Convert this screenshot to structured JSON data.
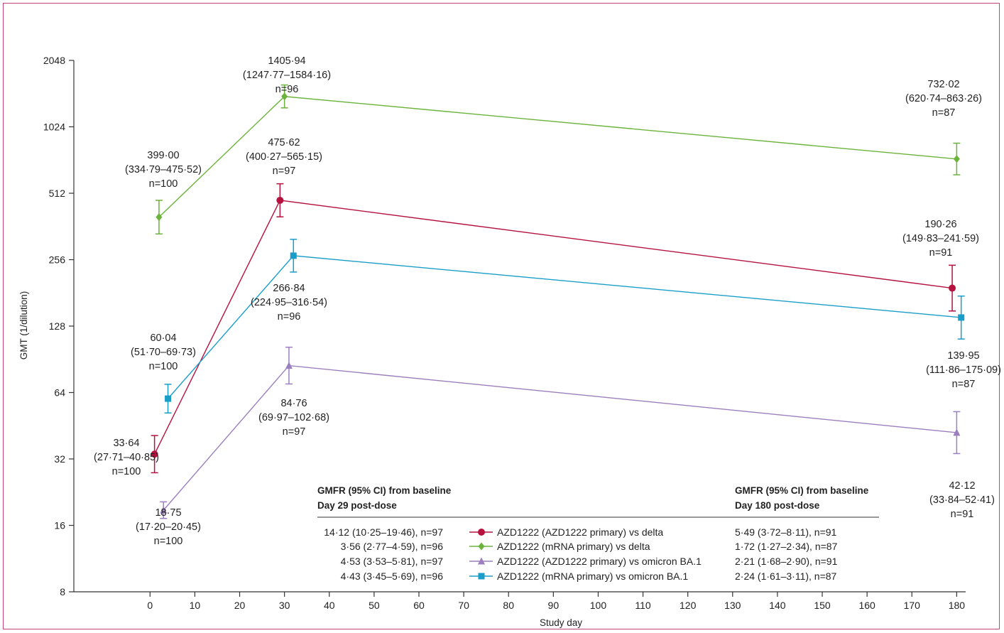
{
  "chart_data": {
    "type": "line",
    "xlabel": "Study day",
    "ylabel": "GMT (1/dilution)",
    "y_scale": "log2",
    "xlim": [
      -17,
      182
    ],
    "ylim": [
      8,
      2048
    ],
    "x_ticks": [
      "0",
      "10",
      "20",
      "30",
      "40",
      "50",
      "60",
      "70",
      "80",
      "90",
      "100",
      "110",
      "120",
      "130",
      "140",
      "150",
      "160",
      "170",
      "180"
    ],
    "y_ticks": [
      "8",
      "16",
      "32",
      "64",
      "128",
      "256",
      "512",
      "1024",
      "2048"
    ],
    "grid": false,
    "series": [
      {
        "name": "AZD1222 (AZD1222 primary) vs delta",
        "color": "#b5123f",
        "marker": "circle",
        "x": [
          1,
          29,
          179
        ],
        "y": [
          33.64,
          475.62,
          190.26
        ],
        "ci_low": [
          27.71,
          400.27,
          149.83
        ],
        "ci_high": [
          40.85,
          565.15,
          241.59
        ],
        "value_labels": [
          "33·64",
          "475·62",
          "190·26"
        ],
        "ci_labels": [
          "(27·71–40·85)",
          "(400·27–565·15)",
          "(149·83–241·59)"
        ],
        "n_labels": [
          "n=100",
          "n=97",
          "n=91"
        ],
        "gmfr_day29": "14·12 (10·25–19·46), n=97",
        "gmfr_day180": "5·49 (3·72–8·11), n=91"
      },
      {
        "name": "AZD1222 (mRNA primary) vs delta",
        "color": "#6bb33a",
        "marker": "diamond",
        "x": [
          2,
          30,
          180
        ],
        "y": [
          399.0,
          1405.94,
          732.02
        ],
        "ci_low": [
          334.79,
          1247.77,
          620.74
        ],
        "ci_high": [
          475.52,
          1584.16,
          863.26
        ],
        "value_labels": [
          "399·00",
          "1405·94",
          "732·02"
        ],
        "ci_labels": [
          "(334·79–475·52)",
          "(1247·77–1584·16)",
          "(620·74–863·26)"
        ],
        "n_labels": [
          "n=100",
          "n=96",
          "n=87"
        ],
        "gmfr_day29": "3·56 (2·77–4·59), n=96",
        "gmfr_day180": "1·72 (1·27–2·34), n=87"
      },
      {
        "name": "AZD1222 (AZD1222 primary) vs omicron BA.1",
        "color": "#9b7fbe",
        "marker": "triangle",
        "x": [
          3,
          31,
          180
        ],
        "y": [
          18.75,
          84.76,
          42.12
        ],
        "ci_low": [
          17.2,
          69.97,
          33.84
        ],
        "ci_high": [
          20.45,
          102.68,
          52.41
        ],
        "value_labels": [
          "18·75",
          "84·76",
          "42·12"
        ],
        "ci_labels": [
          "(17·20–20·45)",
          "(69·97–102·68)",
          "(33·84–52·41)"
        ],
        "n_labels": [
          "n=100",
          "n=97",
          "n=91"
        ],
        "gmfr_day29": "4·53 (3·53–5·81), n=97",
        "gmfr_day180": "2·21 (1·68–2·90), n=91"
      },
      {
        "name": "AZD1222 (mRNA primary) vs omicron BA.1",
        "color": "#1a9ec9",
        "marker": "square",
        "x": [
          4,
          32,
          181
        ],
        "y": [
          60.04,
          266.84,
          139.95
        ],
        "ci_low": [
          51.7,
          224.95,
          111.86
        ],
        "ci_high": [
          69.73,
          316.54,
          175.09
        ],
        "value_labels": [
          "60·04",
          "266·84",
          "139·95"
        ],
        "ci_labels": [
          "(51·70–69·73)",
          "(224·95–316·54)",
          "(111·86–175·09)"
        ],
        "n_labels": [
          "n=100",
          "n=96",
          "n=87"
        ],
        "gmfr_day29": "4·43 (3·45–5·69), n=96",
        "gmfr_day180": "2·24 (1·61–3·11), n=87"
      }
    ],
    "legend_table": {
      "placement": "bottom-center",
      "day29_header": [
        "GMFR (95% CI) from baseline",
        "Day 29 post-dose"
      ],
      "day180_header": [
        "GMFR (95% CI) from baseline",
        "Day 180 post-dose"
      ]
    }
  }
}
